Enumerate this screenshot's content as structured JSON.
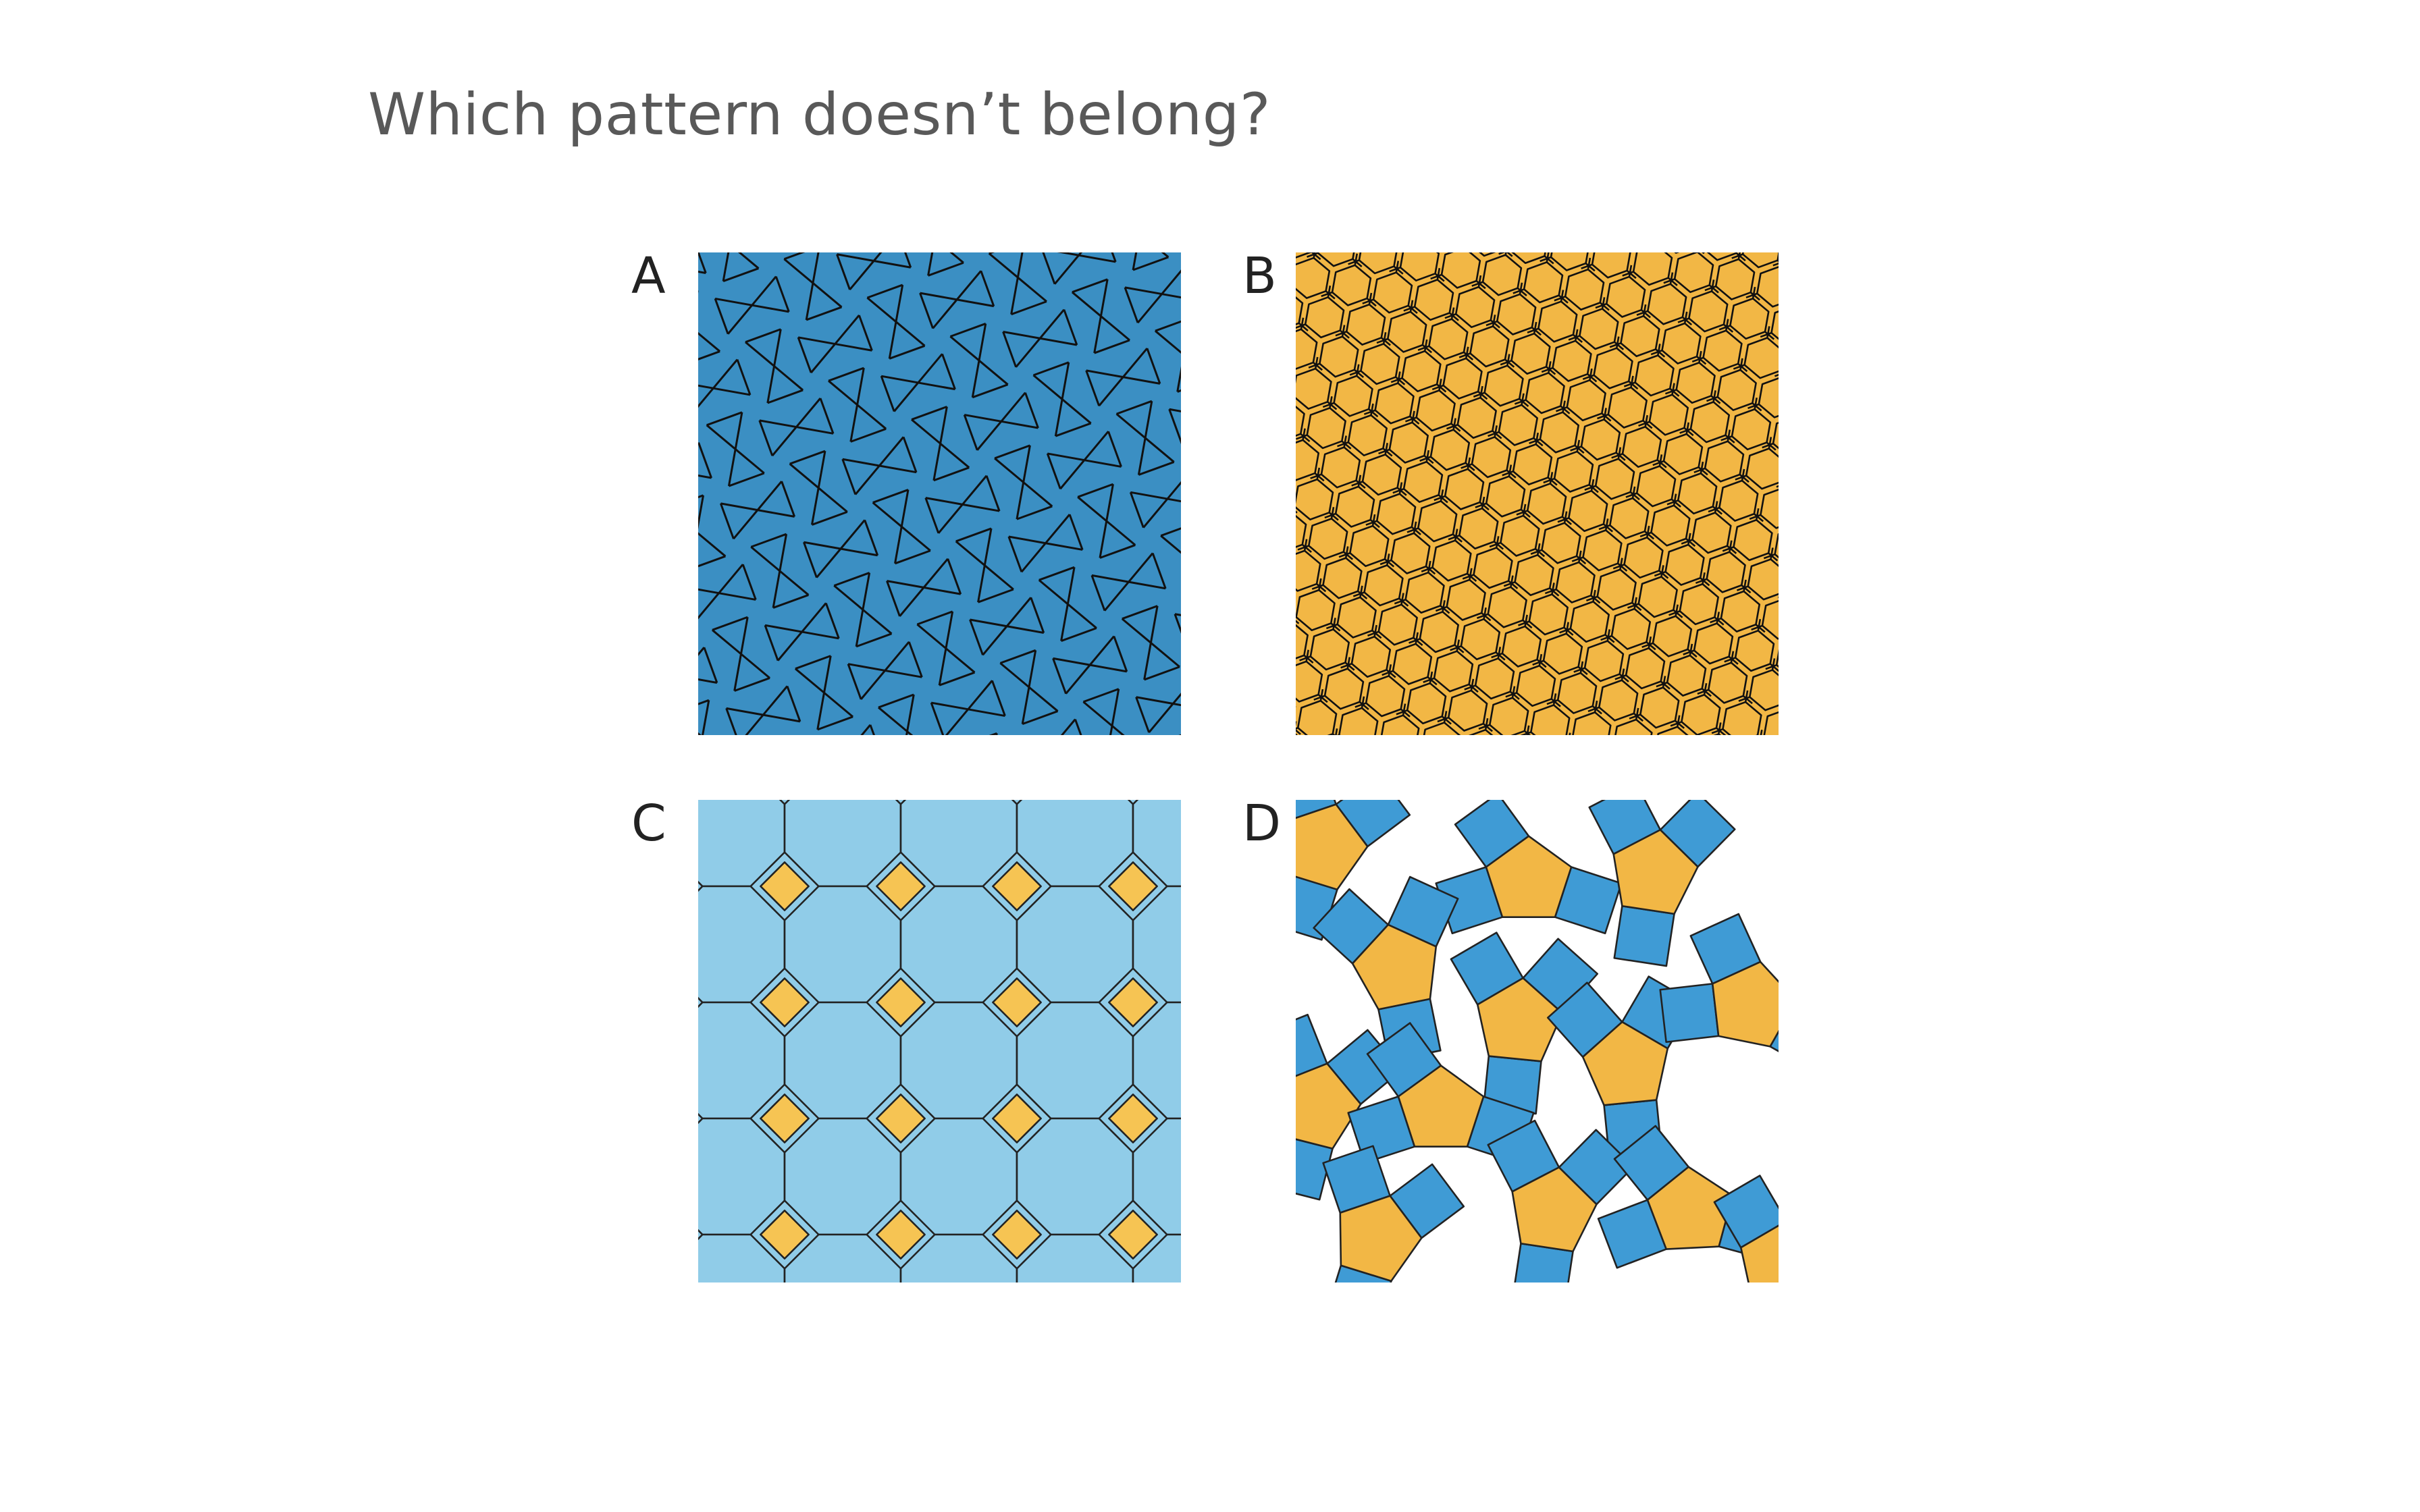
{
  "question": "Which pattern doesn’t belong?",
  "options": [
    {
      "label": "A",
      "fill": "#3b8fc3",
      "pattern": "cairo-pentagonal-tiling-icon"
    },
    {
      "label": "B",
      "fill": "#f2b745",
      "pattern": "floret-pentagonal-tiling-icon"
    },
    {
      "label": "C",
      "fill": "#90cce8",
      "accent": "#f6c453",
      "pattern": "octagon-square-tiling-icon"
    },
    {
      "label": "D",
      "fill": "#f2b745",
      "accent": "#3f9bd5",
      "pattern": "pentagon-square-arrangement-icon"
    }
  ]
}
